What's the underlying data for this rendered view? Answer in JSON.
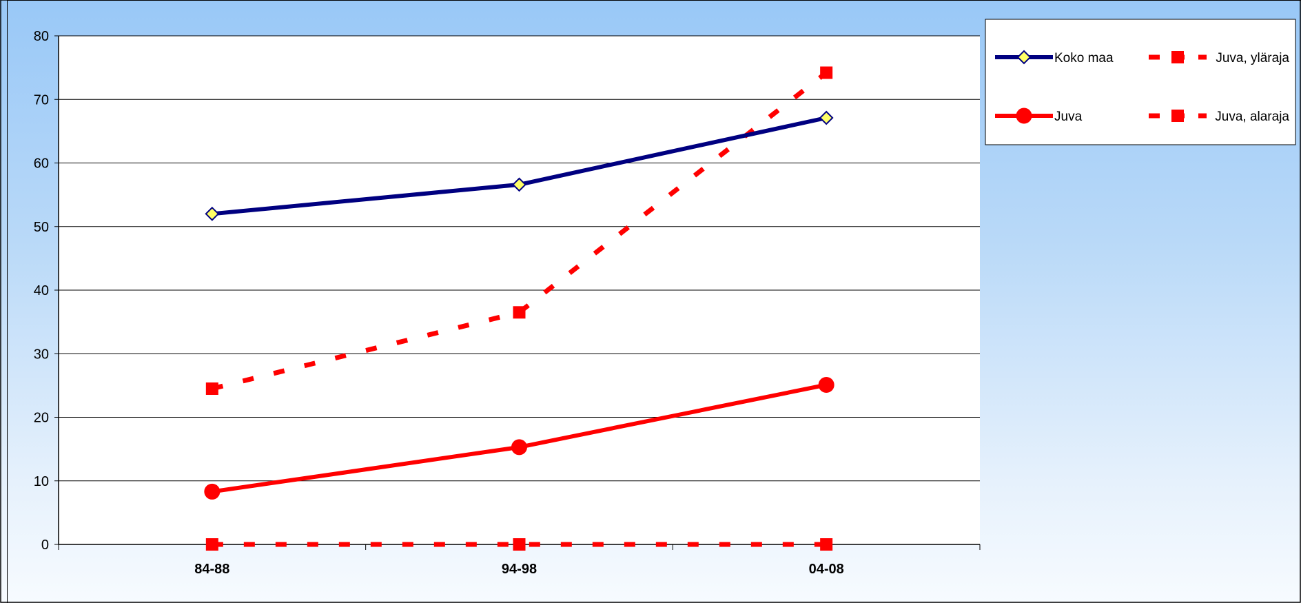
{
  "chart_data": {
    "type": "line",
    "categories": [
      "84-88",
      "94-98",
      "04-08"
    ],
    "ylim": [
      0,
      80
    ],
    "yticks": [
      0,
      10,
      20,
      30,
      40,
      50,
      60,
      70,
      80
    ],
    "grid": true,
    "legend_position": "top-right",
    "series": [
      {
        "name": "Koko maa",
        "values": [
          52.0,
          56.6,
          67.1
        ],
        "color": "#000080",
        "marker": "diamond",
        "marker_fill": "#ffff66",
        "dash": false
      },
      {
        "name": "Juva",
        "values": [
          8.3,
          15.3,
          25.1
        ],
        "color": "#ff0000",
        "marker": "circle",
        "marker_fill": "#ff0000",
        "dash": false
      },
      {
        "name": "Juva, yläraja",
        "values": [
          24.5,
          36.5,
          74.2
        ],
        "color": "#ff0000",
        "marker": "square",
        "marker_fill": "#ff0000",
        "dash": true
      },
      {
        "name": "Juva, alaraja",
        "values": [
          0,
          0,
          0
        ],
        "color": "#ff0000",
        "marker": "square",
        "marker_fill": "#ff0000",
        "dash": true
      }
    ]
  }
}
